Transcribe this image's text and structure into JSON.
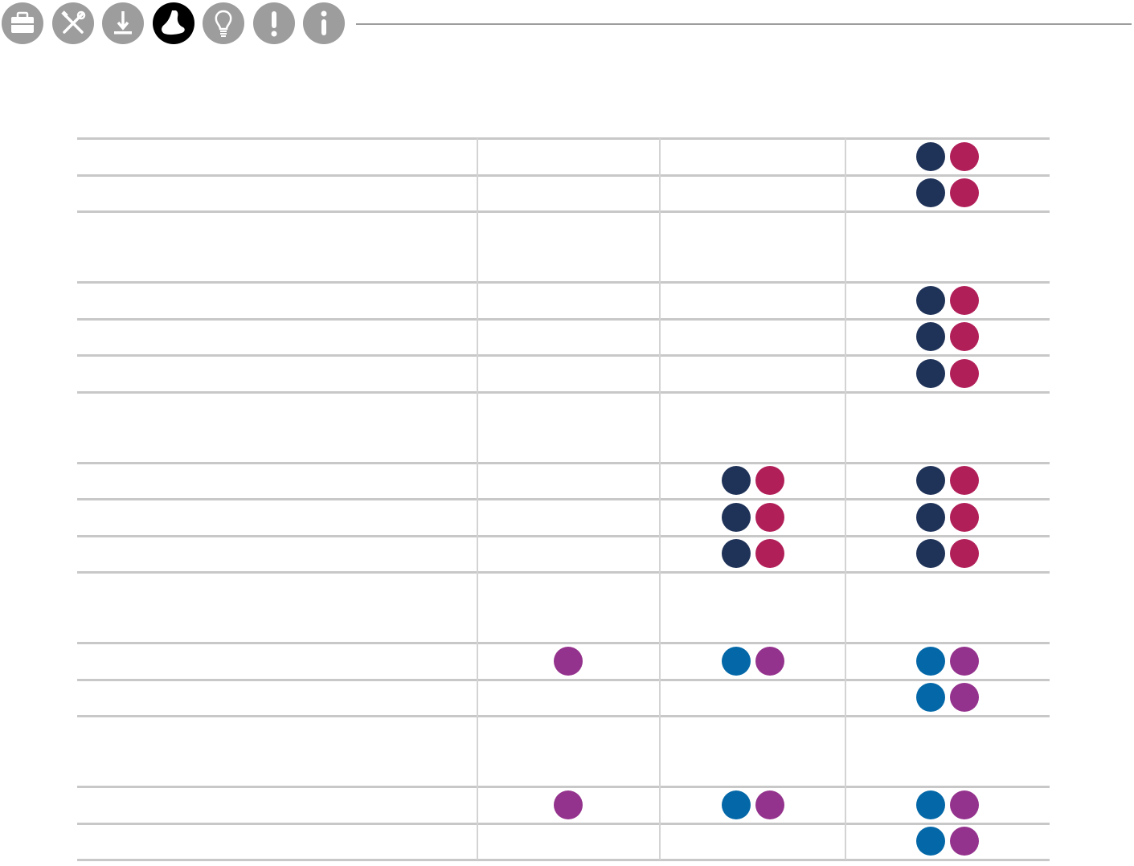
{
  "nav": {
    "icons": [
      {
        "name": "briefcase-icon",
        "active": false
      },
      {
        "name": "tools-icon",
        "active": false
      },
      {
        "name": "download-icon",
        "active": false
      },
      {
        "name": "foot-icon",
        "active": true
      },
      {
        "name": "lightbulb-icon",
        "active": false
      },
      {
        "name": "exclamation-icon",
        "active": false
      },
      {
        "name": "info-icon",
        "active": false
      }
    ]
  },
  "colors": {
    "icon_inactive": "#9d9d9d",
    "icon_active": "#000000",
    "navy": "#1f3258",
    "crimson": "#b11f59",
    "blue": "#0468a8",
    "purple": "#94338d",
    "grid": "#c8c8c8"
  },
  "matrix": {
    "columns": [
      "label",
      "col1",
      "col2",
      "col3"
    ],
    "rows": [
      {
        "type": "row",
        "marks": [
          [],
          [],
          [
            "navy",
            "crimson"
          ]
        ]
      },
      {
        "type": "row",
        "marks": [
          [],
          [],
          [
            "navy",
            "crimson"
          ]
        ]
      },
      {
        "type": "gap"
      },
      {
        "type": "row",
        "marks": [
          [],
          [],
          [
            "navy",
            "crimson"
          ]
        ]
      },
      {
        "type": "row",
        "marks": [
          [],
          [],
          [
            "navy",
            "crimson"
          ]
        ]
      },
      {
        "type": "row",
        "marks": [
          [],
          [],
          [
            "navy",
            "crimson"
          ]
        ]
      },
      {
        "type": "gap"
      },
      {
        "type": "row",
        "marks": [
          [],
          [
            "navy",
            "crimson"
          ],
          [
            "navy",
            "crimson"
          ]
        ]
      },
      {
        "type": "row",
        "marks": [
          [],
          [
            "navy",
            "crimson"
          ],
          [
            "navy",
            "crimson"
          ]
        ]
      },
      {
        "type": "row",
        "marks": [
          [],
          [
            "navy",
            "crimson"
          ],
          [
            "navy",
            "crimson"
          ]
        ]
      },
      {
        "type": "gap"
      },
      {
        "type": "row",
        "marks": [
          [
            "purple"
          ],
          [
            "blue",
            "purple"
          ],
          [
            "blue",
            "purple"
          ]
        ]
      },
      {
        "type": "row",
        "marks": [
          [],
          [],
          [
            "blue",
            "purple"
          ]
        ]
      },
      {
        "type": "gap"
      },
      {
        "type": "row",
        "marks": [
          [
            "purple"
          ],
          [
            "blue",
            "purple"
          ],
          [
            "blue",
            "purple"
          ]
        ]
      },
      {
        "type": "row",
        "marks": [
          [],
          [],
          [
            "blue",
            "purple"
          ]
        ]
      }
    ]
  }
}
